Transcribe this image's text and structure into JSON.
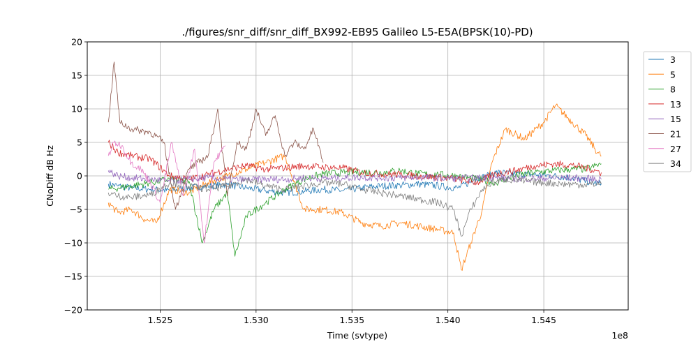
{
  "chart_data": {
    "type": "line",
    "title": "./figures/snr_diff/snr_diff_BX992-EB95 Galileo  L5-E5A(BPSK(10)-PD)",
    "xlabel": "Time (svtype)",
    "ylabel": "CNoDiff dB Hz",
    "x_offset_label": "1e8",
    "xlim": [
      1.5212,
      1.5494
    ],
    "ylim": [
      -20,
      20
    ],
    "x_ticks": [
      1.525,
      1.53,
      1.535,
      1.54,
      1.545
    ],
    "x_tick_labels": [
      "1.525",
      "1.530",
      "1.535",
      "1.540",
      "1.545"
    ],
    "y_ticks": [
      -20,
      -15,
      -10,
      -5,
      0,
      5,
      10,
      15,
      20
    ],
    "y_tick_labels": [
      "−20",
      "−15",
      "−10",
      "−5",
      "0",
      "5",
      "10",
      "15",
      "20"
    ],
    "grid": true,
    "legend_position": "upper-right-outside",
    "series": [
      {
        "name": "3",
        "color": "#1f77b4",
        "x": [
          1.5223,
          1.5228,
          1.5235,
          1.5245,
          1.5255,
          1.5265,
          1.5275,
          1.5285,
          1.5295,
          1.5305,
          1.5315,
          1.5325,
          1.5335,
          1.5345,
          1.5355,
          1.5365,
          1.5375,
          1.5385,
          1.5395,
          1.5405,
          1.5415,
          1.5425,
          1.5435,
          1.5445,
          1.5455,
          1.5465,
          1.5472,
          1.548
        ],
        "y": [
          -1.2,
          -1.5,
          -1.8,
          -2.0,
          -2.2,
          -1.8,
          -1.5,
          -1.3,
          -1.8,
          -2.2,
          -2.5,
          -2.3,
          -2.0,
          -2.2,
          -1.8,
          -1.5,
          -1.4,
          -1.2,
          -1.5,
          -1.8,
          -0.5,
          0.5,
          0.3,
          0.2,
          0.0,
          -0.3,
          -0.8,
          -1.2
        ]
      },
      {
        "name": "5",
        "color": "#ff7f0e",
        "x": [
          1.5223,
          1.5228,
          1.5235,
          1.5242,
          1.5248,
          1.5255,
          1.5265,
          1.5275,
          1.5285,
          1.5295,
          1.5305,
          1.5315,
          1.5325,
          1.5335,
          1.5345,
          1.5355,
          1.5365,
          1.5375,
          1.5385,
          1.5395,
          1.5403,
          1.5407,
          1.5412,
          1.5418,
          1.5423,
          1.543,
          1.544,
          1.545,
          1.5456,
          1.5465,
          1.5472,
          1.5478,
          1.548
        ],
        "y": [
          -4.0,
          -5.5,
          -5.0,
          -6.5,
          -7.0,
          -2.0,
          -2.5,
          -1.0,
          0.0,
          1.0,
          2.0,
          3.0,
          -5.0,
          -5.0,
          -5.5,
          -7.0,
          -7.5,
          -7.0,
          -7.5,
          -8.0,
          -8.5,
          -14.0,
          -10.0,
          -5.0,
          2.0,
          7.0,
          5.5,
          8.0,
          10.5,
          8.0,
          6.0,
          3.5,
          3.0
        ]
      },
      {
        "name": "8",
        "color": "#2ca02c",
        "x": [
          1.5223,
          1.5228,
          1.5235,
          1.5245,
          1.5255,
          1.5265,
          1.5272,
          1.5278,
          1.5285,
          1.5289,
          1.5295,
          1.5305,
          1.5315,
          1.5325,
          1.5335,
          1.5345,
          1.5355,
          1.5365,
          1.5375,
          1.5385,
          1.5395,
          1.5405,
          1.5415,
          1.5425,
          1.5435,
          1.5445,
          1.5455,
          1.5465,
          1.5472,
          1.548
        ],
        "y": [
          -2.0,
          -1.8,
          -1.5,
          -1.0,
          -0.5,
          -0.8,
          -10.0,
          -5.0,
          -2.5,
          -12.0,
          -6.0,
          -4.0,
          -2.0,
          -0.5,
          0.3,
          0.5,
          0.6,
          0.5,
          0.8,
          0.3,
          0.2,
          0.0,
          -0.5,
          -1.0,
          0.0,
          0.5,
          0.8,
          1.0,
          1.0,
          1.8
        ]
      },
      {
        "name": "13",
        "color": "#d62728",
        "x": [
          1.5223,
          1.5228,
          1.5235,
          1.5245,
          1.5255,
          1.5265,
          1.5275,
          1.5285,
          1.5295,
          1.5305,
          1.5315,
          1.5325,
          1.5335,
          1.5345,
          1.5355,
          1.5365,
          1.5375,
          1.5385,
          1.5395,
          1.5405,
          1.5415,
          1.5425,
          1.5435,
          1.5445,
          1.5455,
          1.5465,
          1.5472,
          1.548
        ],
        "y": [
          5.0,
          3.5,
          3.0,
          2.5,
          0.0,
          -0.5,
          0.2,
          1.0,
          1.5,
          1.0,
          1.2,
          1.5,
          1.3,
          1.2,
          0.5,
          0.3,
          0.2,
          0.0,
          -0.2,
          -0.5,
          -1.0,
          0.3,
          0.8,
          1.5,
          1.8,
          1.6,
          1.2,
          0.5
        ]
      },
      {
        "name": "15",
        "color": "#9467bd",
        "x": [
          1.5223,
          1.5228,
          1.5235,
          1.5245,
          1.5255,
          1.5265,
          1.5275,
          1.5285,
          1.5295,
          1.5305,
          1.5315,
          1.5325,
          1.5335,
          1.5345,
          1.5355,
          1.5365,
          1.5375,
          1.5385,
          1.5395,
          1.5405,
          1.5415,
          1.5425,
          1.5435,
          1.5445,
          1.5455,
          1.5465,
          1.5472,
          1.548
        ],
        "y": [
          0.8,
          0.0,
          -0.3,
          -0.5,
          -0.8,
          -0.5,
          -0.3,
          -0.5,
          -0.6,
          -0.5,
          -0.5,
          -0.3,
          -0.4,
          -0.3,
          -0.2,
          -0.3,
          -0.3,
          -0.2,
          -0.3,
          -0.4,
          -0.3,
          -0.3,
          -0.4,
          -0.4,
          -0.3,
          -0.3,
          -0.4,
          -0.5
        ]
      },
      {
        "name": "21",
        "color": "#8c564b",
        "x": [
          1.5223,
          1.5226,
          1.5229,
          1.5235,
          1.5245,
          1.5252,
          1.5258,
          1.5265,
          1.5275,
          1.528,
          1.5285,
          1.529,
          1.5295,
          1.53,
          1.5305,
          1.531,
          1.5315,
          1.532,
          1.5325,
          1.533,
          1.5335
        ],
        "y": [
          8.0,
          17.0,
          8.0,
          7.0,
          6.5,
          5.0,
          -5.0,
          1.0,
          3.0,
          10.0,
          -3.0,
          5.0,
          4.0,
          10.0,
          6.0,
          9.0,
          3.0,
          5.0,
          4.0,
          7.0,
          2.0
        ]
      },
      {
        "name": "27",
        "color": "#e377c2",
        "x": [
          1.5223,
          1.5226,
          1.523,
          1.5235,
          1.524,
          1.5245,
          1.525,
          1.5256,
          1.5262,
          1.5268,
          1.5273,
          1.5278,
          1.5284
        ],
        "y": [
          3.0,
          5.0,
          4.5,
          2.0,
          1.0,
          -1.0,
          -4.0,
          5.0,
          -3.0,
          4.0,
          -10.0,
          2.0,
          4.5
        ]
      },
      {
        "name": "34",
        "color": "#7f7f7f",
        "x": [
          1.5223,
          1.5228,
          1.5235,
          1.5245,
          1.5255,
          1.5265,
          1.5275,
          1.5285,
          1.5295,
          1.5305,
          1.5315,
          1.5325,
          1.5335,
          1.5345,
          1.5355,
          1.5365,
          1.5375,
          1.5385,
          1.5395,
          1.5403,
          1.5407,
          1.5412,
          1.5418,
          1.5423,
          1.543,
          1.544,
          1.545,
          1.546,
          1.547,
          1.548
        ],
        "y": [
          -2.5,
          -3.0,
          -3.2,
          -2.8,
          -1.0,
          -1.5,
          -2.0,
          -1.5,
          -0.5,
          -1.5,
          -2.0,
          -1.5,
          -1.0,
          -1.2,
          -2.0,
          -2.5,
          -3.0,
          -3.5,
          -4.0,
          -5.0,
          -9.0,
          -5.0,
          -2.0,
          -1.0,
          -0.5,
          -0.8,
          -1.0,
          -1.2,
          -1.3,
          -1.2
        ]
      }
    ]
  }
}
